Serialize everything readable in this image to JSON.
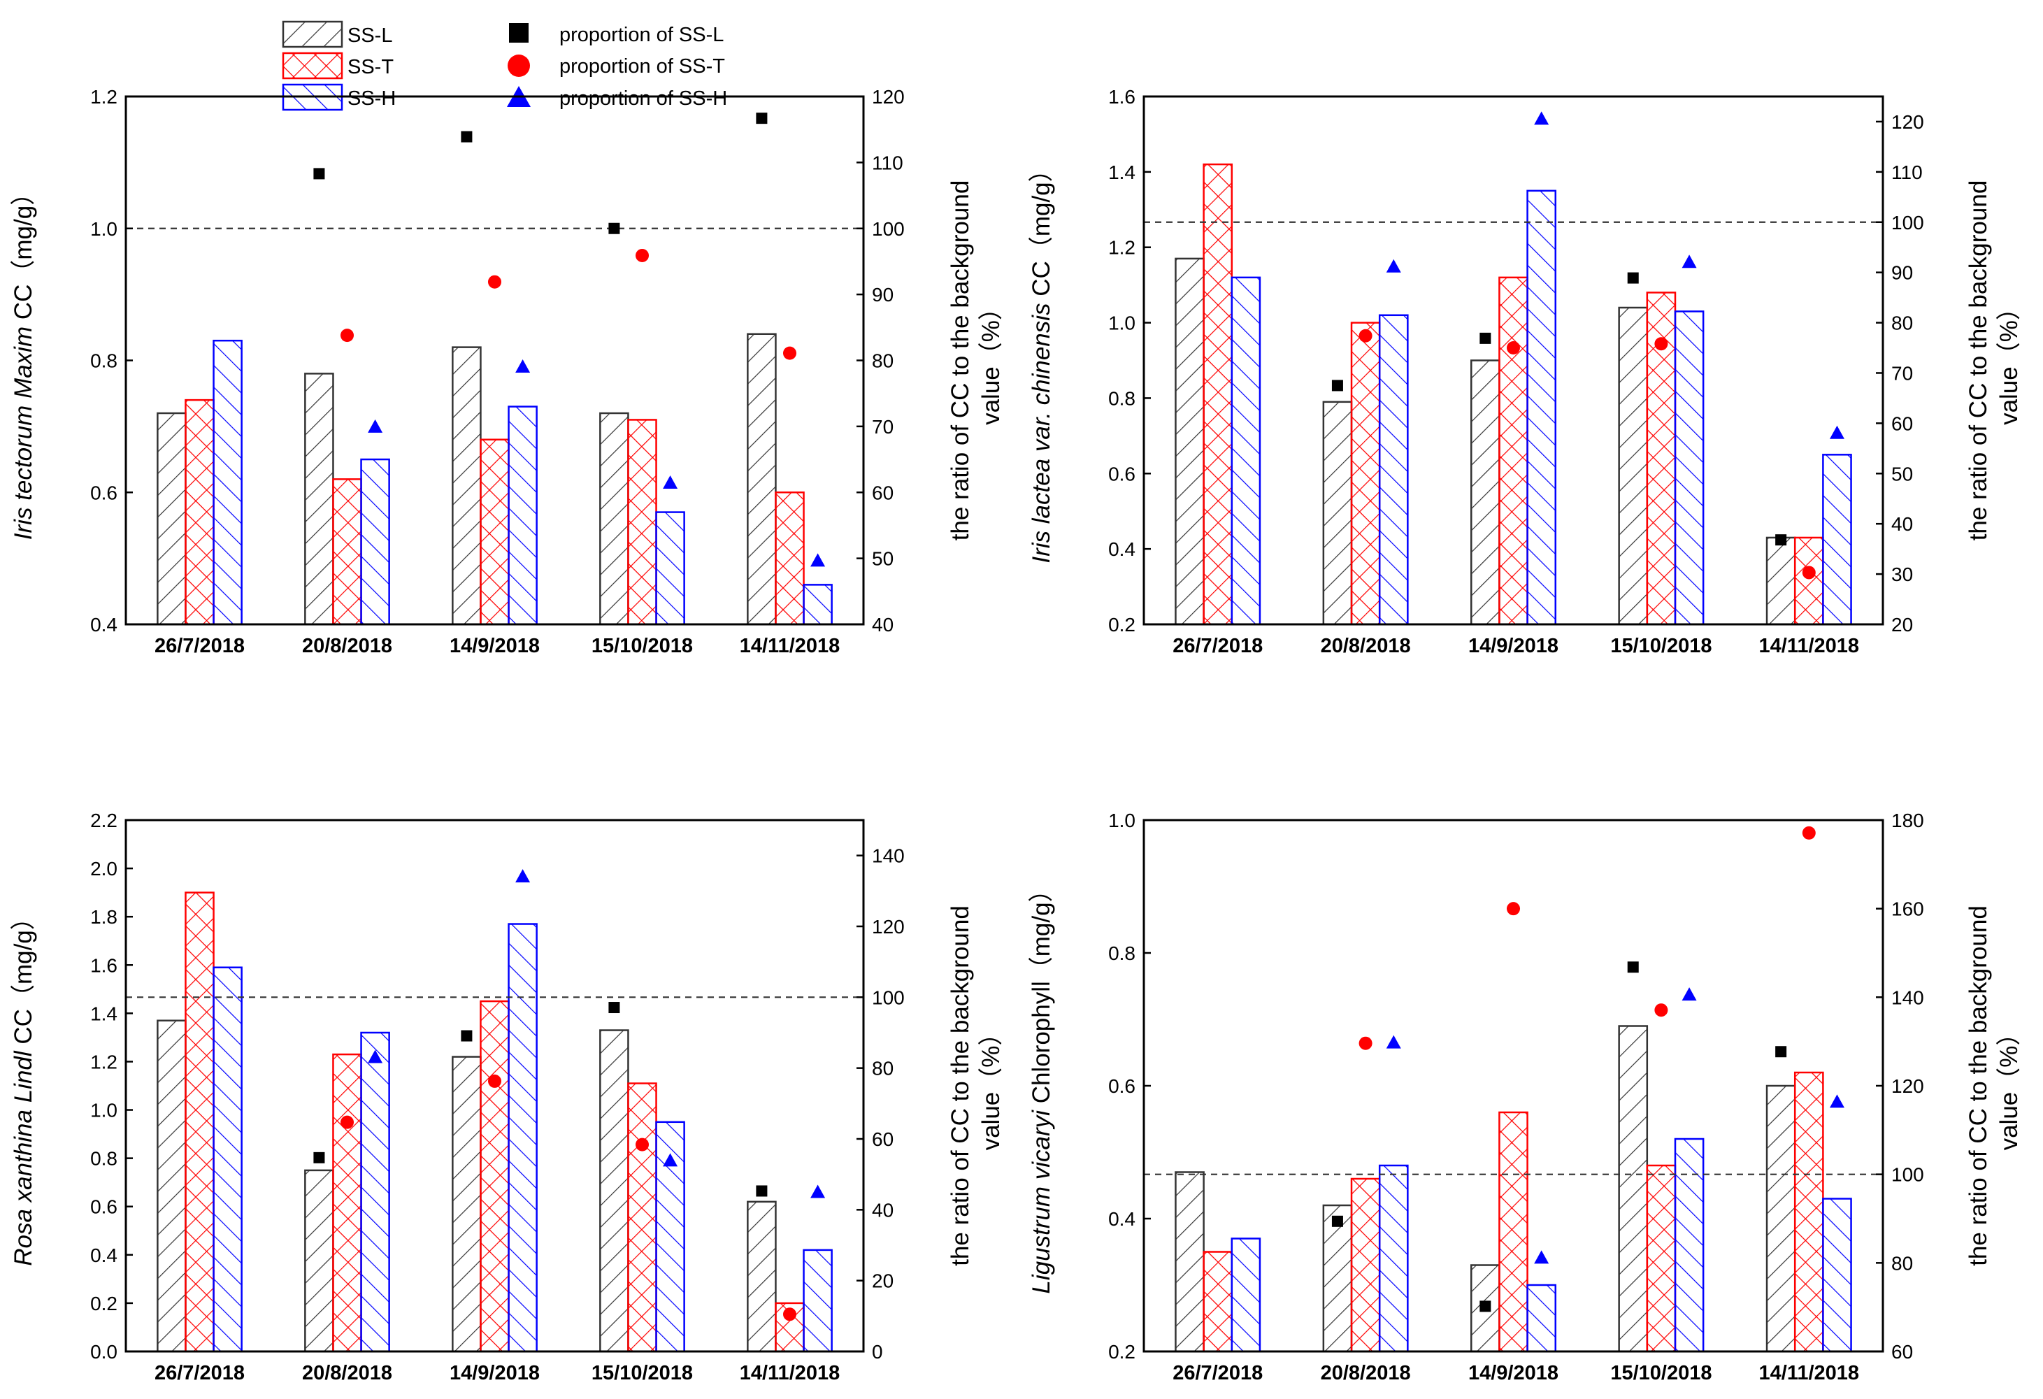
{
  "legend": {
    "bars": [
      {
        "key": "SS-L",
        "label": "SS-L",
        "color": "#333333"
      },
      {
        "key": "SS-T",
        "label": "SS-T",
        "color": "#ff0000"
      },
      {
        "key": "SS-H",
        "label": "SS-H",
        "color": "#0000ff"
      }
    ],
    "markers": [
      {
        "key": "SS-L",
        "label": "proportion of SS-L",
        "shape": "square",
        "color": "#000000"
      },
      {
        "key": "SS-T",
        "label": "proportion of SS-T",
        "shape": "circle",
        "color": "#ff0000"
      },
      {
        "key": "SS-H",
        "label": "proportion of SS-H",
        "shape": "triangle",
        "color": "#0000ff"
      }
    ]
  },
  "chart_data": [
    {
      "type": "bar",
      "panel": "top-left",
      "categories": [
        "26/7/2018",
        "20/8/2018",
        "14/9/2018",
        "15/10/2018",
        "14/11/2018"
      ],
      "ylabel_parts": [
        {
          "t": "Iris tectorum Maxim",
          "i": true
        },
        {
          "t": " CC（mg/g）",
          "i": false
        }
      ],
      "y2label_lines": [
        "the ratio of CC to the background",
        "value（%）"
      ],
      "ylim": [
        0.4,
        1.2
      ],
      "yticks": [
        "0.4",
        "0.6",
        "0.8",
        "1.0",
        "1.2"
      ],
      "y2lim": [
        40,
        120
      ],
      "y2ticks": [
        "40",
        "50",
        "60",
        "70",
        "80",
        "90",
        "100",
        "110",
        "120"
      ],
      "reference_y2": 100,
      "series": [
        {
          "name": "SS-L",
          "values": [
            0.72,
            0.78,
            0.82,
            0.72,
            0.84
          ]
        },
        {
          "name": "SS-T",
          "values": [
            0.74,
            0.62,
            0.68,
            0.71,
            0.6
          ]
        },
        {
          "name": "SS-H",
          "values": [
            0.83,
            0.65,
            0.73,
            0.57,
            0.46
          ]
        }
      ],
      "proportions": [
        {
          "name": "SS-L",
          "values": [
            null,
            108.3,
            113.9,
            100.0,
            116.7
          ]
        },
        {
          "name": "SS-T",
          "values": [
            null,
            83.8,
            91.9,
            95.9,
            81.1
          ]
        },
        {
          "name": "SS-H",
          "values": [
            null,
            69.9,
            79.0,
            61.4,
            49.6
          ]
        }
      ]
    },
    {
      "type": "bar",
      "panel": "top-right",
      "categories": [
        "26/7/2018",
        "20/8/2018",
        "14/9/2018",
        "15/10/2018",
        "14/11/2018"
      ],
      "ylabel_parts": [
        {
          "t": "Iris lactea var. chinensis",
          "i": true
        },
        {
          "t": " CC（mg/g）",
          "i": false
        }
      ],
      "y2label_lines": [
        "the ratio of CC to the background",
        "value（%）"
      ],
      "ylim": [
        0.2,
        1.6
      ],
      "yticks": [
        "0.2",
        "0.4",
        "0.6",
        "0.8",
        "1.0",
        "1.2",
        "1.4",
        "1.6"
      ],
      "y2lim": [
        20,
        125
      ],
      "y2ticks": [
        "20",
        "30",
        "40",
        "50",
        "60",
        "70",
        "80",
        "90",
        "100",
        "110",
        "120"
      ],
      "reference_y2": 100,
      "series": [
        {
          "name": "SS-L",
          "values": [
            1.17,
            0.79,
            0.9,
            1.04,
            0.43
          ]
        },
        {
          "name": "SS-T",
          "values": [
            1.42,
            1.0,
            1.12,
            1.08,
            0.43
          ]
        },
        {
          "name": "SS-H",
          "values": [
            1.12,
            1.02,
            1.35,
            1.03,
            0.65
          ]
        }
      ],
      "proportions": [
        {
          "name": "SS-L",
          "values": [
            null,
            67.5,
            76.9,
            88.9,
            36.8
          ]
        },
        {
          "name": "SS-T",
          "values": [
            null,
            77.4,
            75.0,
            75.8,
            30.3
          ]
        },
        {
          "name": "SS-H",
          "values": [
            null,
            91.1,
            120.5,
            92.0,
            58.0
          ]
        }
      ]
    },
    {
      "type": "bar",
      "panel": "bottom-left",
      "categories": [
        "26/7/2018",
        "20/8/2018",
        "14/9/2018",
        "15/10/2018",
        "14/11/2018"
      ],
      "ylabel_parts": [
        {
          "t": "Rosa xanthina Lindl",
          "i": true
        },
        {
          "t": " CC（mg/g）",
          "i": false
        }
      ],
      "y2label_lines": [
        "the ratio of CC to the background",
        "value（%）"
      ],
      "ylim": [
        0.0,
        2.2
      ],
      "yticks": [
        "0.0",
        "0.2",
        "0.4",
        "0.6",
        "0.8",
        "1.0",
        "1.2",
        "1.4",
        "1.6",
        "1.8",
        "2.0",
        "2.2"
      ],
      "y2lim": [
        0,
        150
      ],
      "y2ticks": [
        "0",
        "20",
        "40",
        "60",
        "80",
        "100",
        "120",
        "140"
      ],
      "reference_y2": 100,
      "series": [
        {
          "name": "SS-L",
          "values": [
            1.37,
            0.75,
            1.22,
            1.33,
            0.62
          ]
        },
        {
          "name": "SS-T",
          "values": [
            1.9,
            1.23,
            1.45,
            1.11,
            0.2
          ]
        },
        {
          "name": "SS-H",
          "values": [
            1.59,
            1.32,
            1.77,
            0.95,
            0.42
          ]
        }
      ],
      "proportions": [
        {
          "name": "SS-L",
          "values": [
            null,
            54.7,
            89.1,
            97.1,
            45.3
          ]
        },
        {
          "name": "SS-T",
          "values": [
            null,
            64.7,
            76.3,
            58.4,
            10.5
          ]
        },
        {
          "name": "SS-H",
          "values": [
            null,
            83.0,
            134.0,
            53.8,
            44.9
          ]
        }
      ]
    },
    {
      "type": "bar",
      "panel": "bottom-right",
      "categories": [
        "26/7/2018",
        "20/8/2018",
        "14/9/2018",
        "15/10/2018",
        "14/11/2018"
      ],
      "ylabel_parts": [
        {
          "t": "Ligustrum vicaryi",
          "i": true
        },
        {
          "t": " Chlorophyll（mg/g）",
          "i": false
        }
      ],
      "y2label_lines": [
        "the ratio of CC to the background",
        "value（%）"
      ],
      "ylim": [
        0.2,
        1.0
      ],
      "yticks": [
        "0.2",
        "0.4",
        "0.6",
        "0.8",
        "1.0"
      ],
      "y2lim": [
        60,
        180
      ],
      "y2ticks": [
        "60",
        "80",
        "100",
        "120",
        "140",
        "160",
        "180"
      ],
      "reference_y2": 100,
      "series": [
        {
          "name": "SS-L",
          "values": [
            0.47,
            0.42,
            0.33,
            0.69,
            0.6
          ]
        },
        {
          "name": "SS-T",
          "values": [
            0.35,
            0.46,
            0.56,
            0.48,
            0.62
          ]
        },
        {
          "name": "SS-H",
          "values": [
            0.37,
            0.48,
            0.3,
            0.52,
            0.43
          ]
        }
      ],
      "proportions": [
        {
          "name": "SS-L",
          "values": [
            null,
            89.4,
            70.2,
            146.8,
            127.7
          ]
        },
        {
          "name": "SS-T",
          "values": [
            null,
            129.6,
            160.0,
            137.1,
            177.1
          ]
        },
        {
          "name": "SS-H",
          "values": [
            null,
            129.7,
            81.1,
            140.5,
            116.3
          ]
        }
      ]
    }
  ]
}
